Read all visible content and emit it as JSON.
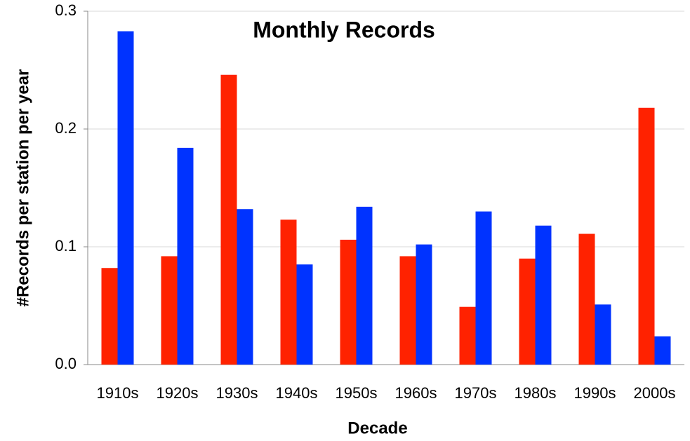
{
  "chart_data": {
    "type": "bar",
    "title": "Monthly Records",
    "x_label": "Decade",
    "y_label": "#Records per station per year",
    "categories": [
      "1910s",
      "1920s",
      "1930s",
      "1940s",
      "1950s",
      "1960s",
      "1970s",
      "1980s",
      "1990s",
      "2000s"
    ],
    "series": [
      {
        "color": "#ff2200",
        "values": [
          0.082,
          0.092,
          0.246,
          0.123,
          0.106,
          0.092,
          0.049,
          0.09,
          0.111,
          0.218
        ]
      },
      {
        "color": "#0033ff",
        "values": [
          0.283,
          0.184,
          0.132,
          0.085,
          0.134,
          0.102,
          0.13,
          0.118,
          0.051,
          0.024
        ]
      }
    ],
    "ylim": [
      0,
      0.3
    ],
    "yticks": [
      {
        "value": 0,
        "label": "0.0"
      },
      0.1,
      0.2,
      0.3
    ],
    "grid": true
  }
}
